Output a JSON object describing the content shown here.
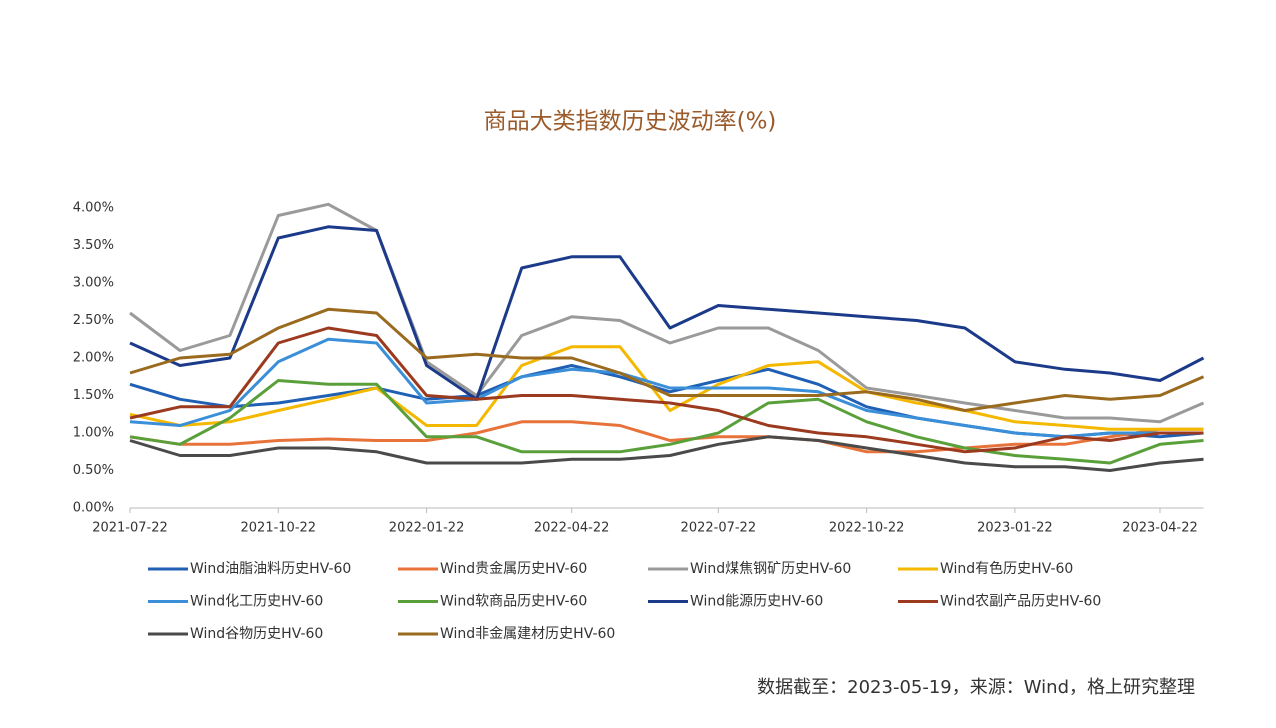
{
  "chart_data": {
    "type": "line",
    "title": "商品大类指数历史波动率(%)",
    "x": [
      "2021-07-22",
      "2021-08-22",
      "2021-09-22",
      "2021-10-22",
      "2021-11-22",
      "2021-12-22",
      "2022-01-22",
      "2022-02-22",
      "2022-03-22",
      "2022-04-22",
      "2022-05-22",
      "2022-06-22",
      "2022-07-22",
      "2022-08-22",
      "2022-09-22",
      "2022-10-22",
      "2022-11-22",
      "2022-12-22",
      "2023-01-22",
      "2023-02-22",
      "2023-03-22",
      "2023-04-22",
      "2023-05-19"
    ],
    "xlim": [
      "2021-07-22",
      "2023-05-19"
    ],
    "xticks": [
      "2021-07-22",
      "2021-10-22",
      "2022-01-22",
      "2022-04-22",
      "2022-07-22",
      "2022-10-22",
      "2023-01-22",
      "2023-04-22"
    ],
    "ylim": [
      0,
      4.2
    ],
    "yticks": [
      {
        "value": 0,
        "label": "0.00%"
      },
      {
        "value": 0.5,
        "label": "0.50%"
      },
      {
        "value": 1,
        "label": "1.00%"
      },
      {
        "value": 1.5,
        "label": "1.50%"
      },
      {
        "value": 2,
        "label": "2.00%"
      },
      {
        "value": 2.5,
        "label": "2.50%"
      },
      {
        "value": 3,
        "label": "3.00%"
      },
      {
        "value": 3.5,
        "label": "3.50%"
      },
      {
        "value": 4,
        "label": "4.00%"
      }
    ],
    "series": [
      {
        "name": "Wind油脂油料历史HV-60",
        "color": "#1f5fb4",
        "values": [
          1.65,
          1.45,
          1.35,
          1.4,
          1.5,
          1.6,
          1.45,
          1.5,
          1.75,
          1.9,
          1.75,
          1.55,
          1.7,
          1.85,
          1.65,
          1.35,
          1.2,
          1.1,
          1.0,
          0.95,
          1.0,
          0.95,
          1.0
        ]
      },
      {
        "name": "Wind贵金属历史HV-60",
        "color": "#e8733a",
        "values": [
          0.95,
          0.85,
          0.85,
          0.9,
          0.92,
          0.9,
          0.9,
          1.0,
          1.15,
          1.15,
          1.1,
          0.9,
          0.95,
          0.95,
          0.9,
          0.75,
          0.75,
          0.8,
          0.85,
          0.85,
          0.95,
          1.05,
          1.05
        ]
      },
      {
        "name": "Wind煤焦钢矿历史HV-60",
        "color": "#9a9a9a",
        "values": [
          2.6,
          2.1,
          2.3,
          3.9,
          4.05,
          3.7,
          1.95,
          1.5,
          2.3,
          2.55,
          2.5,
          2.2,
          2.4,
          2.4,
          2.1,
          1.6,
          1.5,
          1.4,
          1.3,
          1.2,
          1.2,
          1.15,
          1.4
        ]
      },
      {
        "name": "Wind有色历史HV-60",
        "color": "#f5b800",
        "values": [
          1.25,
          1.1,
          1.15,
          1.3,
          1.45,
          1.6,
          1.1,
          1.1,
          1.9,
          2.15,
          2.15,
          1.3,
          1.65,
          1.9,
          1.95,
          1.55,
          1.4,
          1.3,
          1.15,
          1.1,
          1.05,
          1.05,
          1.05
        ]
      },
      {
        "name": "Wind化工历史HV-60",
        "color": "#3a8fd8",
        "values": [
          1.15,
          1.1,
          1.3,
          1.95,
          2.25,
          2.2,
          1.4,
          1.45,
          1.75,
          1.85,
          1.8,
          1.6,
          1.6,
          1.6,
          1.55,
          1.3,
          1.2,
          1.1,
          1.0,
          0.95,
          1.0,
          1.0,
          1.0
        ]
      },
      {
        "name": "Wind软商品历史HV-60",
        "color": "#5aa03a",
        "values": [
          0.95,
          0.85,
          1.2,
          1.7,
          1.65,
          1.65,
          0.95,
          0.95,
          0.75,
          0.75,
          0.75,
          0.85,
          1.0,
          1.4,
          1.45,
          1.15,
          0.95,
          0.8,
          0.7,
          0.65,
          0.6,
          0.85,
          0.9
        ]
      },
      {
        "name": "Wind能源历史HV-60",
        "color": "#1c3a8a",
        "values": [
          2.2,
          1.9,
          2.0,
          3.6,
          3.75,
          3.7,
          1.9,
          1.45,
          3.2,
          3.35,
          3.35,
          2.4,
          2.7,
          2.65,
          2.6,
          2.55,
          2.5,
          2.4,
          1.95,
          1.85,
          1.8,
          1.7,
          2.0
        ]
      },
      {
        "name": "Wind农副产品历史HV-60",
        "color": "#9b3a1f",
        "values": [
          1.2,
          1.35,
          1.35,
          2.2,
          2.4,
          2.3,
          1.5,
          1.45,
          1.5,
          1.5,
          1.45,
          1.4,
          1.3,
          1.1,
          1.0,
          0.95,
          0.85,
          0.75,
          0.8,
          0.95,
          0.9,
          1.0,
          1.0
        ]
      },
      {
        "name": "Wind谷物历史HV-60",
        "color": "#4a4a4a",
        "values": [
          0.9,
          0.7,
          0.7,
          0.8,
          0.8,
          0.75,
          0.6,
          0.6,
          0.6,
          0.65,
          0.65,
          0.7,
          0.85,
          0.95,
          0.9,
          0.8,
          0.7,
          0.6,
          0.55,
          0.55,
          0.5,
          0.6,
          0.65
        ]
      },
      {
        "name": "Wind非金属建材历史HV-60",
        "color": "#9a6a1f",
        "values": [
          1.8,
          2.0,
          2.05,
          2.4,
          2.65,
          2.6,
          2.0,
          2.05,
          2.0,
          2.0,
          1.8,
          1.5,
          1.5,
          1.5,
          1.5,
          1.55,
          1.45,
          1.3,
          1.4,
          1.5,
          1.45,
          1.5,
          1.75
        ]
      }
    ],
    "note": "数据截至：2023-05-19，来源：Wind，格上研究整理"
  }
}
